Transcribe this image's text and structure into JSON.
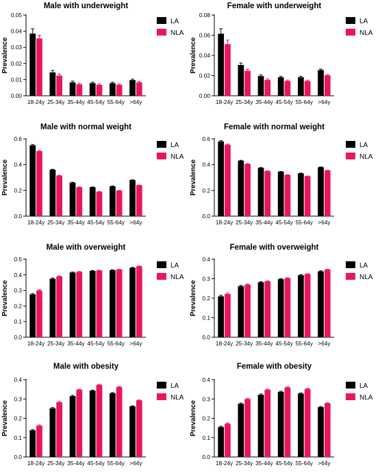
{
  "chart_data": [
    {
      "type": "bar",
      "title": "Male with underweight",
      "xlabel": "",
      "ylabel": "Prevalence",
      "categories": [
        "18-24y",
        "25-34y",
        "35-44y",
        "45-54y",
        "55-64y",
        ">64y"
      ],
      "ylim": [
        0,
        0.05
      ],
      "yticks": [
        "0.00",
        "0.01",
        "0.02",
        "0.03",
        "0.04",
        "0.05"
      ],
      "series": [
        {
          "name": "LA",
          "values": [
            0.0385,
            0.0145,
            0.0083,
            0.0078,
            0.0078,
            0.0097
          ],
          "errors": [
            0.003,
            0.0012,
            0.0008,
            0.0006,
            0.0006,
            0.0006
          ]
        },
        {
          "name": "NLA",
          "values": [
            0.0355,
            0.0125,
            0.0071,
            0.0068,
            0.0068,
            0.0083
          ],
          "errors": [
            0.002,
            0.001,
            0.0006,
            0.0005,
            0.0005,
            0.0005
          ]
        }
      ],
      "legend": "top-right"
    },
    {
      "type": "bar",
      "title": "Female with underweight",
      "xlabel": "",
      "ylabel": "Prevalence",
      "categories": [
        "18-24y",
        "25-34y",
        "35-44y",
        "45-54y",
        "55-64y",
        ">64y"
      ],
      "ylim": [
        0,
        0.08
      ],
      "yticks": [
        "0.00",
        "0.02",
        "0.04",
        "0.06",
        "0.08"
      ],
      "series": [
        {
          "name": "LA",
          "values": [
            0.0615,
            0.0305,
            0.0195,
            0.0183,
            0.0183,
            0.0255
          ],
          "errors": [
            0.005,
            0.002,
            0.0012,
            0.001,
            0.001,
            0.001
          ]
        },
        {
          "name": "NLA",
          "values": [
            0.0512,
            0.0248,
            0.0157,
            0.0147,
            0.0147,
            0.0203
          ],
          "errors": [
            0.004,
            0.0015,
            0.001,
            0.0008,
            0.0008,
            0.0008
          ]
        }
      ],
      "legend": "top-right"
    },
    {
      "type": "bar",
      "title": "Male with normal weight",
      "xlabel": "",
      "ylabel": "Prevalence",
      "categories": [
        "18-24y",
        "25-34y",
        "35-44y",
        "45-54y",
        "55-64y",
        ">64y"
      ],
      "ylim": [
        0,
        0.6
      ],
      "yticks": [
        "0.0",
        "0.2",
        "0.4",
        "0.6"
      ],
      "series": [
        {
          "name": "LA",
          "values": [
            0.55,
            0.36,
            0.26,
            0.225,
            0.232,
            0.28
          ],
          "errors": [
            0.006,
            0.004,
            0.003,
            0.002,
            0.002,
            0.002
          ]
        },
        {
          "name": "NLA",
          "values": [
            0.505,
            0.315,
            0.225,
            0.19,
            0.198,
            0.24
          ],
          "errors": [
            0.005,
            0.003,
            0.002,
            0.002,
            0.002,
            0.002
          ]
        }
      ],
      "legend": "top-right"
    },
    {
      "type": "bar",
      "title": "Female with normal weight",
      "xlabel": "",
      "ylabel": "Prevalence",
      "categories": [
        "18-24y",
        "25-34y",
        "35-44y",
        "45-54y",
        "55-64y",
        ">64y"
      ],
      "ylim": [
        0,
        0.6
      ],
      "yticks": [
        "0.0",
        "0.2",
        "0.4",
        "0.6"
      ],
      "series": [
        {
          "name": "LA",
          "values": [
            0.58,
            0.43,
            0.375,
            0.345,
            0.332,
            0.38
          ],
          "errors": [
            0.006,
            0.004,
            0.003,
            0.002,
            0.002,
            0.002
          ]
        },
        {
          "name": "NLA",
          "values": [
            0.555,
            0.405,
            0.35,
            0.32,
            0.31,
            0.355
          ],
          "errors": [
            0.005,
            0.003,
            0.002,
            0.002,
            0.002,
            0.002
          ]
        }
      ],
      "legend": "top-right"
    },
    {
      "type": "bar",
      "title": "Male with overweight",
      "xlabel": "",
      "ylabel": "Prevalence",
      "categories": [
        "18-24y",
        "25-34y",
        "35-44y",
        "45-54y",
        "55-64y",
        ">64y"
      ],
      "ylim": [
        0,
        0.5
      ],
      "yticks": [
        "0.0",
        "0.1",
        "0.2",
        "0.3",
        "0.4",
        "0.5"
      ],
      "series": [
        {
          "name": "LA",
          "values": [
            0.275,
            0.375,
            0.415,
            0.425,
            0.43,
            0.445
          ],
          "errors": [
            0.005,
            0.004,
            0.003,
            0.003,
            0.003,
            0.003
          ]
        },
        {
          "name": "NLA",
          "values": [
            0.3,
            0.39,
            0.42,
            0.428,
            0.434,
            0.455
          ],
          "errors": [
            0.005,
            0.003,
            0.002,
            0.002,
            0.002,
            0.002
          ]
        }
      ],
      "legend": "top-right"
    },
    {
      "type": "bar",
      "title": "Female with overweight",
      "xlabel": "",
      "ylabel": "Prevalence",
      "categories": [
        "18-24y",
        "25-34y",
        "35-44y",
        "45-54y",
        "55-64y",
        ">64y"
      ],
      "ylim": [
        0,
        0.4
      ],
      "yticks": [
        "0.0",
        "0.1",
        "0.2",
        "0.3",
        "0.4"
      ],
      "series": [
        {
          "name": "LA",
          "values": [
            0.21,
            0.262,
            0.282,
            0.298,
            0.318,
            0.338
          ],
          "errors": [
            0.005,
            0.004,
            0.003,
            0.003,
            0.003,
            0.003
          ]
        },
        {
          "name": "NLA",
          "values": [
            0.222,
            0.27,
            0.287,
            0.303,
            0.324,
            0.347
          ],
          "errors": [
            0.005,
            0.003,
            0.002,
            0.002,
            0.002,
            0.002
          ]
        }
      ],
      "legend": "top-right"
    },
    {
      "type": "bar",
      "title": "Male with obesity",
      "xlabel": "",
      "ylabel": "Prevalence",
      "categories": [
        "18-24y",
        "25-34y",
        "35-44y",
        "45-54y",
        "55-64y",
        ">64y"
      ],
      "ylim": [
        0,
        0.4
      ],
      "yticks": [
        "0.0",
        "0.1",
        "0.2",
        "0.3",
        "0.4"
      ],
      "series": [
        {
          "name": "LA",
          "values": [
            0.138,
            0.252,
            0.315,
            0.343,
            0.33,
            0.262
          ],
          "errors": [
            0.004,
            0.004,
            0.004,
            0.003,
            0.003,
            0.003
          ]
        },
        {
          "name": "NLA",
          "values": [
            0.162,
            0.283,
            0.348,
            0.373,
            0.362,
            0.293
          ],
          "errors": [
            0.004,
            0.004,
            0.003,
            0.003,
            0.003,
            0.002
          ]
        }
      ],
      "legend": "top-right"
    },
    {
      "type": "bar",
      "title": "Female with obesity",
      "xlabel": "",
      "ylabel": "Prevalence",
      "categories": [
        "18-24y",
        "25-34y",
        "35-44y",
        "45-54y",
        "55-64y",
        ">64y"
      ],
      "ylim": [
        0,
        0.4
      ],
      "yticks": [
        "0.0",
        "0.1",
        "0.2",
        "0.3",
        "0.4"
      ],
      "series": [
        {
          "name": "LA",
          "values": [
            0.155,
            0.275,
            0.322,
            0.337,
            0.328,
            0.258
          ],
          "errors": [
            0.004,
            0.004,
            0.004,
            0.003,
            0.003,
            0.003
          ]
        },
        {
          "name": "NLA",
          "values": [
            0.172,
            0.3,
            0.348,
            0.36,
            0.352,
            0.278
          ],
          "errors": [
            0.004,
            0.004,
            0.003,
            0.003,
            0.003,
            0.002
          ]
        }
      ],
      "legend": "top-right"
    }
  ],
  "colors": {
    "LA": "#000000",
    "NLA": "#e8175d"
  }
}
